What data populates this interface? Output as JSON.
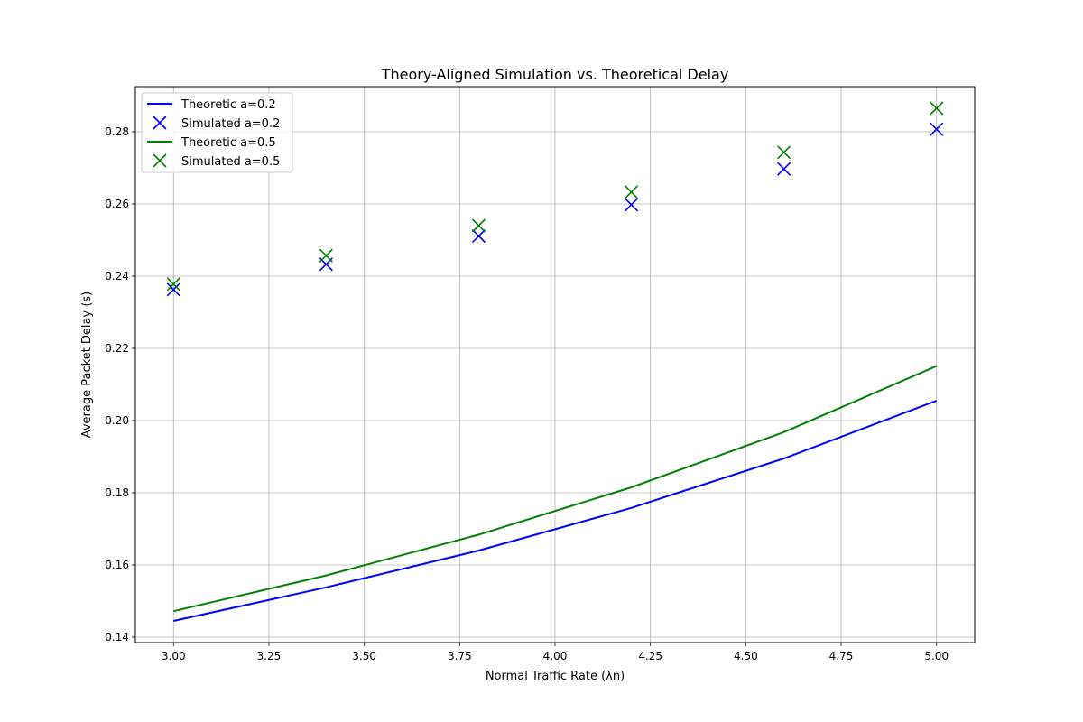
{
  "chart_data": {
    "type": "line",
    "title": "Theory-Aligned Simulation vs. Theoretical Delay",
    "xlabel": "Normal Traffic Rate (λn)",
    "ylabel": "Average Packet Delay (s)",
    "xlim": [
      2.9,
      5.1
    ],
    "ylim": [
      0.1385,
      0.2925
    ],
    "grid": true,
    "legend_position": "upper-left",
    "x_ticks": [
      "3.00",
      "3.25",
      "3.50",
      "3.75",
      "4.00",
      "4.25",
      "4.50",
      "4.75",
      "5.00"
    ],
    "y_ticks": [
      "0.14",
      "0.16",
      "0.18",
      "0.20",
      "0.22",
      "0.24",
      "0.26",
      "0.28"
    ],
    "x": [
      3.0,
      3.4,
      3.8,
      4.2,
      4.6,
      5.0
    ],
    "series": [
      {
        "name": "Theoretic a=0.2",
        "kind": "line",
        "color": "#0000ff",
        "values": [
          0.1445,
          0.1538,
          0.164,
          0.1758,
          0.1895,
          0.2055
        ]
      },
      {
        "name": "Simulated a=0.2",
        "kind": "marker-x",
        "color": "#0000ff",
        "values": [
          0.2363,
          0.2433,
          0.2511,
          0.2598,
          0.2697,
          0.2807
        ]
      },
      {
        "name": "Theoretic a=0.5",
        "kind": "line",
        "color": "#008000",
        "values": [
          0.1472,
          0.1571,
          0.1684,
          0.1815,
          0.1968,
          0.2151
        ]
      },
      {
        "name": "Simulated a=0.5",
        "kind": "marker-x",
        "color": "#008000",
        "values": [
          0.2378,
          0.2457,
          0.254,
          0.2633,
          0.2743,
          0.2865
        ]
      }
    ]
  }
}
